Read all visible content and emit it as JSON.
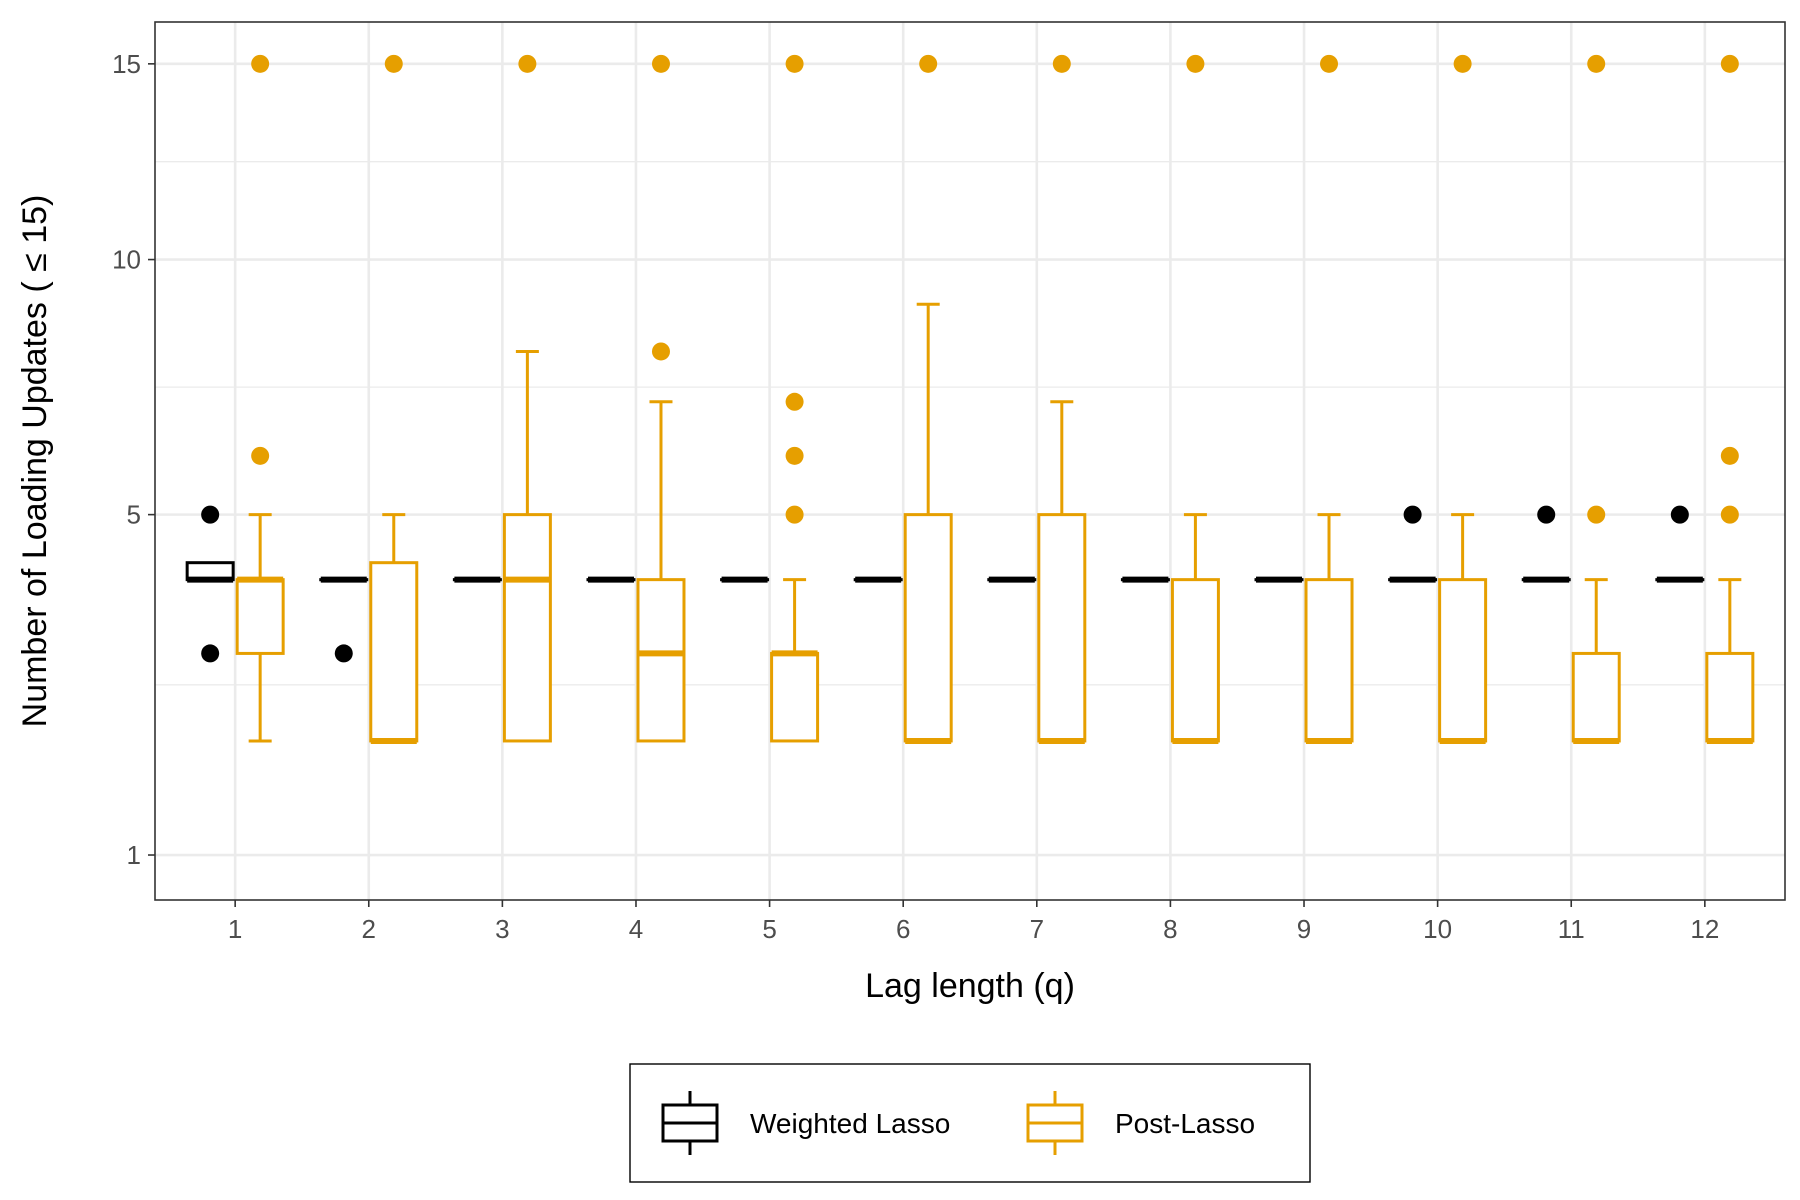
{
  "chart_data": {
    "type": "box",
    "xlabel": "Lag length (q)",
    "ylabel": "Number of Loading Updates ( ≤ 15)",
    "categories": [
      "1",
      "2",
      "3",
      "4",
      "5",
      "6",
      "7",
      "8",
      "9",
      "10",
      "11",
      "12"
    ],
    "y_scale": "sqrt",
    "y_ticks": [
      1,
      5,
      10,
      15
    ],
    "y_tick_labels": [
      "1",
      "5",
      "10",
      "15"
    ],
    "ylim": [
      0.7,
      16.2
    ],
    "grid": true,
    "legend_position": "bottom",
    "series": [
      {
        "name": "Weighted Lasso",
        "color": "#000000",
        "boxes": [
          {
            "lower": 4,
            "q1": 4,
            "median": 4,
            "q3": 4.25,
            "upper": 4,
            "outliers": [
              5,
              3
            ]
          },
          {
            "lower": 4,
            "q1": 4,
            "median": 4,
            "q3": 4,
            "upper": 4,
            "outliers": [
              3
            ]
          },
          {
            "lower": 4,
            "q1": 4,
            "median": 4,
            "q3": 4,
            "upper": 4,
            "outliers": []
          },
          {
            "lower": 4,
            "q1": 4,
            "median": 4,
            "q3": 4,
            "upper": 4,
            "outliers": []
          },
          {
            "lower": 4,
            "q1": 4,
            "median": 4,
            "q3": 4,
            "upper": 4,
            "outliers": []
          },
          {
            "lower": 4,
            "q1": 4,
            "median": 4,
            "q3": 4,
            "upper": 4,
            "outliers": []
          },
          {
            "lower": 4,
            "q1": 4,
            "median": 4,
            "q3": 4,
            "upper": 4,
            "outliers": []
          },
          {
            "lower": 4,
            "q1": 4,
            "median": 4,
            "q3": 4,
            "upper": 4,
            "outliers": []
          },
          {
            "lower": 4,
            "q1": 4,
            "median": 4,
            "q3": 4,
            "upper": 4,
            "outliers": []
          },
          {
            "lower": 4,
            "q1": 4,
            "median": 4,
            "q3": 4,
            "upper": 4,
            "outliers": [
              5
            ]
          },
          {
            "lower": 4,
            "q1": 4,
            "median": 4,
            "q3": 4,
            "upper": 4,
            "outliers": [
              5
            ]
          },
          {
            "lower": 4,
            "q1": 4,
            "median": 4,
            "q3": 4,
            "upper": 4,
            "outliers": [
              5
            ]
          }
        ]
      },
      {
        "name": "Post-Lasso",
        "color": "#E69F00",
        "boxes": [
          {
            "lower": 2,
            "q1": 3,
            "median": 4,
            "q3": 4,
            "upper": 5,
            "outliers": [
              6,
              15
            ]
          },
          {
            "lower": 2,
            "q1": 2,
            "median": 2,
            "q3": 4.25,
            "upper": 5,
            "outliers": [
              15
            ]
          },
          {
            "lower": 2,
            "q1": 2,
            "median": 4,
            "q3": 5,
            "upper": 8,
            "outliers": [
              15
            ]
          },
          {
            "lower": 2,
            "q1": 2,
            "median": 3,
            "q3": 4,
            "upper": 7,
            "outliers": [
              8,
              15
            ]
          },
          {
            "lower": 2,
            "q1": 2,
            "median": 3,
            "q3": 3,
            "upper": 4,
            "outliers": [
              5,
              6,
              7,
              15
            ]
          },
          {
            "lower": 2,
            "q1": 2,
            "median": 2,
            "q3": 5,
            "upper": 9,
            "outliers": [
              15
            ]
          },
          {
            "lower": 2,
            "q1": 2,
            "median": 2,
            "q3": 5,
            "upper": 7,
            "outliers": [
              15
            ]
          },
          {
            "lower": 2,
            "q1": 2,
            "median": 2,
            "q3": 4,
            "upper": 5,
            "outliers": [
              15
            ]
          },
          {
            "lower": 2,
            "q1": 2,
            "median": 2,
            "q3": 4,
            "upper": 5,
            "outliers": [
              15
            ]
          },
          {
            "lower": 2,
            "q1": 2,
            "median": 2,
            "q3": 4,
            "upper": 5,
            "outliers": [
              15
            ]
          },
          {
            "lower": 2,
            "q1": 2,
            "median": 2,
            "q3": 3,
            "upper": 4,
            "outliers": [
              5,
              15
            ]
          },
          {
            "lower": 2,
            "q1": 2,
            "median": 2,
            "q3": 3,
            "upper": 4,
            "outliers": [
              5,
              6,
              15
            ]
          }
        ]
      }
    ]
  }
}
